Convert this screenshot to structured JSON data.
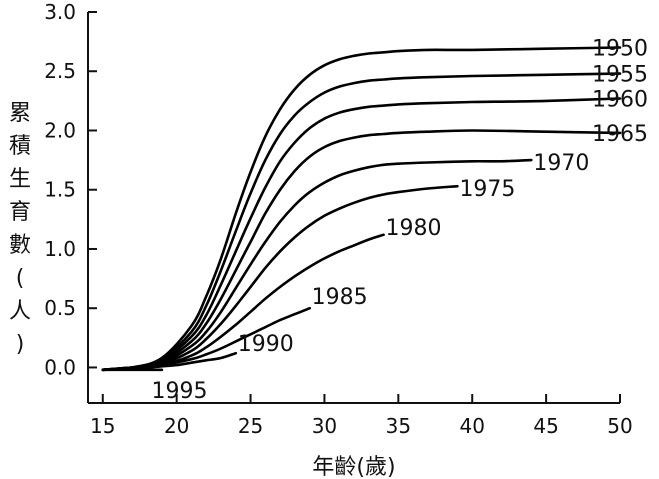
{
  "chart_data": {
    "type": "line",
    "title": "",
    "xlabel": "年齡(歲)",
    "ylabel": "累積生育數(人)",
    "xlim": [
      14,
      50
    ],
    "ylim": [
      -0.3,
      3.0
    ],
    "xticks": [
      15,
      20,
      25,
      30,
      35,
      40,
      45,
      50
    ],
    "yticks": [
      0.0,
      0.5,
      1.0,
      1.5,
      2.0,
      2.5,
      3.0
    ],
    "xtick_labels": [
      "15",
      "20",
      "25",
      "30",
      "35",
      "40",
      "45",
      "50"
    ],
    "ytick_labels": [
      "0.0",
      "0.5",
      "1.0",
      "1.5",
      "2.0",
      "2.5",
      "3.0"
    ],
    "grid": false,
    "legend": "labels at line ends",
    "series": [
      {
        "name": "1950",
        "x": [
          15,
          17,
          19,
          21,
          22,
          23,
          24,
          25,
          26,
          27,
          28,
          29,
          30,
          31,
          32,
          33,
          34,
          35,
          37,
          40,
          45,
          50
        ],
        "y": [
          -0.02,
          0.0,
          0.08,
          0.35,
          0.6,
          0.92,
          1.3,
          1.65,
          1.95,
          2.18,
          2.35,
          2.47,
          2.55,
          2.6,
          2.63,
          2.65,
          2.66,
          2.67,
          2.68,
          2.68,
          2.69,
          2.7
        ]
      },
      {
        "name": "1955",
        "x": [
          15,
          17,
          19,
          21,
          22,
          23,
          24,
          25,
          26,
          27,
          28,
          29,
          30,
          31,
          32,
          33,
          34,
          35,
          37,
          40,
          45,
          50
        ],
        "y": [
          -0.02,
          0.0,
          0.07,
          0.3,
          0.52,
          0.82,
          1.15,
          1.47,
          1.75,
          1.97,
          2.13,
          2.24,
          2.32,
          2.37,
          2.4,
          2.42,
          2.43,
          2.44,
          2.45,
          2.46,
          2.47,
          2.48
        ]
      },
      {
        "name": "1960",
        "x": [
          15,
          17,
          19,
          21,
          22,
          23,
          24,
          25,
          26,
          27,
          28,
          29,
          30,
          31,
          32,
          33,
          34,
          35,
          37,
          40,
          45,
          50
        ],
        "y": [
          -0.02,
          0.0,
          0.06,
          0.26,
          0.44,
          0.7,
          0.98,
          1.26,
          1.52,
          1.74,
          1.9,
          2.02,
          2.1,
          2.15,
          2.18,
          2.2,
          2.21,
          2.22,
          2.23,
          2.24,
          2.25,
          2.27
        ]
      },
      {
        "name": "1965",
        "x": [
          15,
          17,
          19,
          21,
          22,
          23,
          24,
          25,
          26,
          27,
          28,
          29,
          30,
          31,
          32,
          33,
          34,
          35,
          37,
          40,
          45,
          50
        ],
        "y": [
          -0.02,
          0.0,
          0.05,
          0.22,
          0.37,
          0.58,
          0.82,
          1.06,
          1.3,
          1.5,
          1.66,
          1.78,
          1.86,
          1.91,
          1.94,
          1.96,
          1.97,
          1.98,
          1.99,
          2.0,
          1.99,
          1.98
        ]
      },
      {
        "name": "1970",
        "x": [
          15,
          17,
          19,
          21,
          22,
          23,
          24,
          25,
          26,
          27,
          28,
          29,
          30,
          31,
          32,
          33,
          34,
          35,
          37,
          40,
          42,
          44
        ],
        "y": [
          -0.02,
          0.0,
          0.04,
          0.18,
          0.3,
          0.47,
          0.67,
          0.87,
          1.06,
          1.23,
          1.37,
          1.48,
          1.56,
          1.62,
          1.66,
          1.69,
          1.71,
          1.72,
          1.73,
          1.74,
          1.74,
          1.75
        ]
      },
      {
        "name": "1975",
        "x": [
          15,
          17,
          19,
          21,
          22,
          23,
          24,
          25,
          26,
          27,
          28,
          29,
          30,
          31,
          32,
          33,
          34,
          35,
          37,
          39
        ],
        "y": [
          -0.02,
          0.0,
          0.03,
          0.14,
          0.24,
          0.37,
          0.52,
          0.68,
          0.84,
          0.98,
          1.1,
          1.2,
          1.28,
          1.34,
          1.39,
          1.43,
          1.46,
          1.48,
          1.51,
          1.53
        ]
      },
      {
        "name": "1980",
        "x": [
          15,
          17,
          19,
          21,
          22,
          23,
          24,
          25,
          26,
          27,
          28,
          29,
          30,
          31,
          32,
          33,
          34
        ],
        "y": [
          -0.02,
          0.0,
          0.02,
          0.1,
          0.17,
          0.26,
          0.36,
          0.47,
          0.58,
          0.68,
          0.77,
          0.85,
          0.92,
          0.98,
          1.03,
          1.08,
          1.12
        ]
      },
      {
        "name": "1985",
        "x": [
          15,
          17,
          19,
          21,
          22,
          23,
          24,
          25,
          26,
          27,
          28,
          29
        ],
        "y": [
          -0.02,
          0.0,
          0.02,
          0.07,
          0.11,
          0.16,
          0.22,
          0.28,
          0.34,
          0.4,
          0.45,
          0.5
        ]
      },
      {
        "name": "1990",
        "x": [
          15,
          17,
          19,
          20,
          21,
          22,
          23,
          24
        ],
        "y": [
          -0.02,
          -0.01,
          0.01,
          0.02,
          0.04,
          0.06,
          0.08,
          0.12
        ]
      },
      {
        "name": "1995",
        "x": [
          15,
          16,
          17,
          18,
          19
        ],
        "y": [
          -0.02,
          -0.02,
          -0.02,
          -0.02,
          -0.02
        ]
      }
    ]
  }
}
